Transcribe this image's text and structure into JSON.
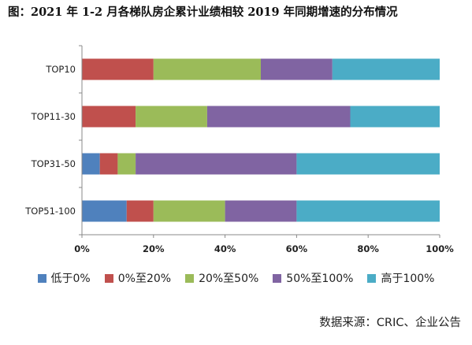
{
  "title": "图：2021 年 1-2 月各梯队房企累计业绩相较 2019 年同期增速的分布情况",
  "source": "数据来源：CRIC、企业公告",
  "chart_data": {
    "type": "bar",
    "orientation": "horizontal",
    "stacked": true,
    "categories": [
      "TOP10",
      "TOP11-30",
      "TOP31-50",
      "TOP51-100"
    ],
    "x_ticks": [
      "0%",
      "20%",
      "40%",
      "60%",
      "80%",
      "100%"
    ],
    "xlim": [
      0,
      100
    ],
    "grid": false,
    "legend_position": "bottom",
    "series": [
      {
        "name": "低于0%",
        "color": "#4f81bd",
        "values": [
          0,
          0,
          5,
          12.5
        ]
      },
      {
        "name": "0%至20%",
        "color": "#c0504d",
        "values": [
          20,
          15,
          5,
          7.5
        ]
      },
      {
        "name": "20%至50%",
        "color": "#9bbb59",
        "values": [
          30,
          20,
          5,
          20
        ]
      },
      {
        "name": "50%至100%",
        "color": "#8064a2",
        "values": [
          20,
          40,
          45,
          20
        ]
      },
      {
        "name": "高于100%",
        "color": "#4bacc6",
        "values": [
          30,
          25,
          40,
          40
        ]
      }
    ]
  }
}
